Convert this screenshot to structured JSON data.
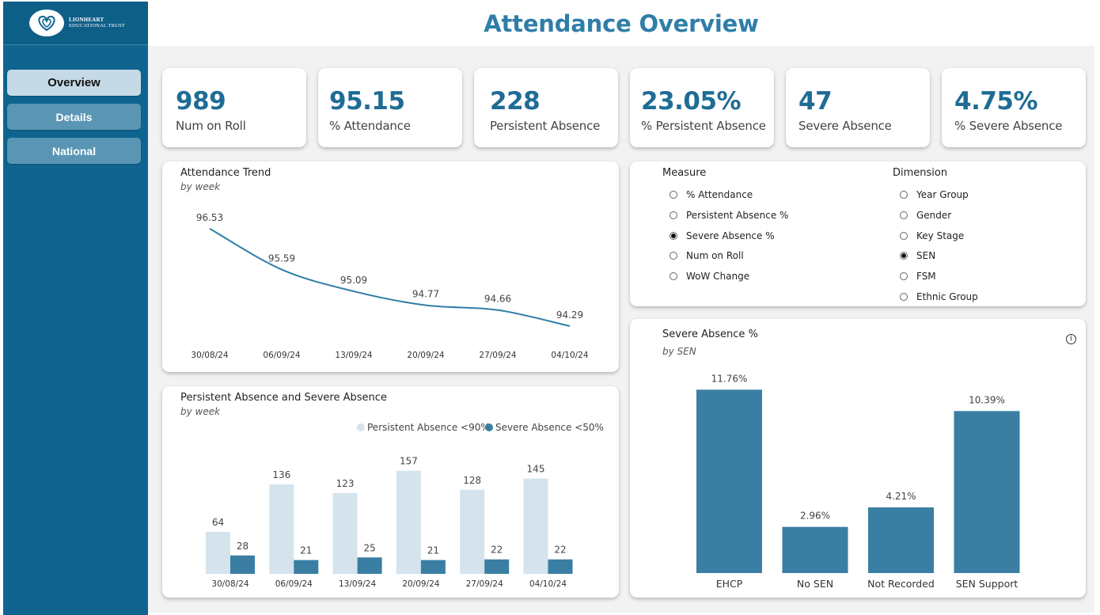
{
  "brand": {
    "line1": "LIONHEART",
    "line2": "EDUCATIONAL TRUST"
  },
  "nav": {
    "items": [
      {
        "label": "Overview"
      },
      {
        "label": "Details"
      },
      {
        "label": "National"
      }
    ]
  },
  "header": {
    "title": "Attendance Overview"
  },
  "kpis": [
    {
      "value": "989",
      "label": "Num on Roll"
    },
    {
      "value": "95.15",
      "label": "% Attendance"
    },
    {
      "value": "228",
      "label": "Persistent Absence"
    },
    {
      "value": "23.05%",
      "label": "% Persistent Absence"
    },
    {
      "value": "47",
      "label": "Severe Absence"
    },
    {
      "value": "4.75%",
      "label": "% Severe Absence"
    }
  ],
  "trend": {
    "title": "Attendance Trend",
    "subtitle": "by week"
  },
  "pa": {
    "title": "Persistent Absence and Severe Absence",
    "subtitle": "by week"
  },
  "slicer": {
    "measure_title": "Measure",
    "measures": [
      {
        "label": "% Attendance",
        "selected": false
      },
      {
        "label": "Persistent Absence %",
        "selected": false
      },
      {
        "label": "Severe Absence %",
        "selected": true
      },
      {
        "label": "Num on Roll",
        "selected": false
      },
      {
        "label": "WoW Change",
        "selected": false
      }
    ],
    "dimension_title": "Dimension",
    "dimensions": [
      {
        "label": "Year Group",
        "selected": false
      },
      {
        "label": "Gender",
        "selected": false
      },
      {
        "label": "Key Stage",
        "selected": false
      },
      {
        "label": "SEN",
        "selected": true
      },
      {
        "label": "FSM",
        "selected": false
      },
      {
        "label": "Ethnic Group",
        "selected": false
      }
    ]
  },
  "sen": {
    "title": "Severe Absence %",
    "subtitle": "by SEN",
    "info_icon": "i"
  },
  "colors": {
    "dark_bar": "#3a7ea3",
    "light_bar": "#d5e3ec",
    "line": "#2f7ea8",
    "kpi": "#1f6c95"
  },
  "chart_data": [
    {
      "type": "line",
      "x": [
        "30/08/24",
        "06/09/24",
        "13/09/24",
        "20/09/24",
        "27/09/24",
        "04/10/24"
      ],
      "values": [
        96.53,
        95.59,
        95.09,
        94.77,
        94.66,
        94.29
      ]
    },
    {
      "type": "bar",
      "categories": [
        "30/08/24",
        "06/09/24",
        "13/09/24",
        "20/09/24",
        "27/09/24",
        "04/10/24"
      ],
      "series": [
        {
          "name": "Persistent Absence <90%",
          "values": [
            64,
            136,
            123,
            157,
            128,
            145
          ]
        },
        {
          "name": "Severe Absence <50%",
          "values": [
            28,
            21,
            25,
            21,
            22,
            22
          ]
        }
      ]
    },
    {
      "type": "bar",
      "categories": [
        "EHCP",
        "No SEN",
        "Not Recorded",
        "SEN Support"
      ],
      "values": [
        11.76,
        2.96,
        4.21,
        10.39
      ],
      "labels": [
        "11.76%",
        "2.96%",
        "4.21%",
        "10.39%"
      ]
    }
  ]
}
